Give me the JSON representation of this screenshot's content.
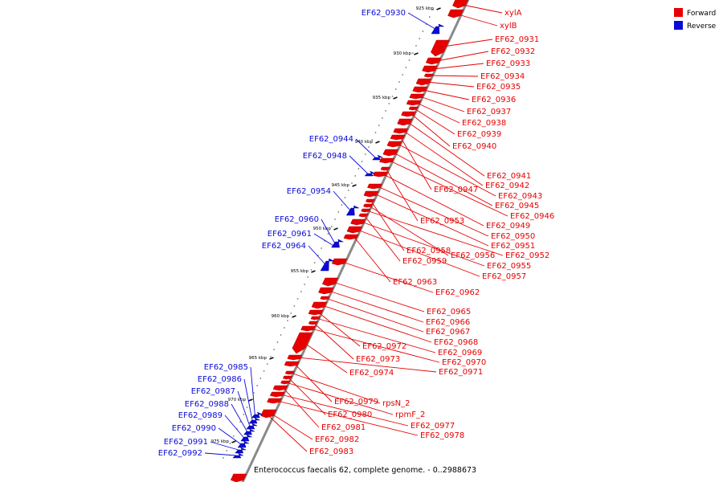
{
  "legend": {
    "forward": {
      "label": "Forward",
      "color": "#e60000"
    },
    "reverse": {
      "label": "Reverse",
      "color": "#0a0ad8"
    }
  },
  "caption": "Enterococcus faecalis 62, complete genome. - 0..2988673",
  "ticks": [
    "925 kbp",
    "930 kbp",
    "935 kbp",
    "940 kbp",
    "945 kbp",
    "950 kbp",
    "955 kbp",
    "960 kbp",
    "965 kbp",
    "970 kbp",
    "975 kbp"
  ],
  "forward_genes": [
    "xylA",
    "xylB",
    "EF62_0931",
    "EF62_0932",
    "EF62_0933",
    "EF62_0934",
    "EF62_0935",
    "EF62_0936",
    "EF62_0937",
    "EF62_0938",
    "EF62_0939",
    "EF62_0940",
    "EF62_0941",
    "EF62_0942",
    "EF62_0947",
    "EF62_0943",
    "EF62_0945",
    "EF62_0946",
    "EF62_0953",
    "EF62_0949",
    "EF62_0950",
    "EF62_0951",
    "EF62_0958",
    "EF62_0956",
    "EF62_0952",
    "EF62_0959",
    "EF62_0955",
    "EF62_0957",
    "EF62_0963",
    "EF62_0962",
    "EF62_0965",
    "EF62_0966",
    "EF62_0967",
    "EF62_0968",
    "EF62_0972",
    "EF62_0969",
    "EF62_0973",
    "EF62_0970",
    "EF62_0974",
    "EF62_0971",
    "EF62_0979",
    "rpsN_2",
    "EF62_0980",
    "rpmF_2",
    "EF62_0981",
    "EF62_0977",
    "EF62_0978",
    "EF62_0982",
    "EF62_0983"
  ],
  "reverse_genes": [
    "EF62_0930",
    "EF62_0944",
    "EF62_0948",
    "EF62_0954",
    "EF62_0960",
    "EF62_0961",
    "EF62_0964",
    "EF62_0985",
    "EF62_0986",
    "EF62_0987",
    "EF62_0988",
    "EF62_0989",
    "EF62_0990",
    "EF62_0991",
    "EF62_0992"
  ]
}
